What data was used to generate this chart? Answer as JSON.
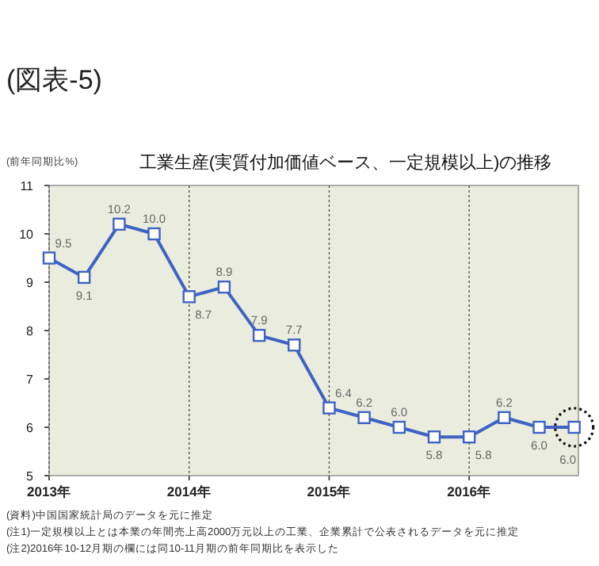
{
  "chart_data": {
    "type": "line",
    "title": "(図表-5)",
    "subtitle": "工業生産(実質付加価値ベース、一定規模以上)の推移",
    "ylabel": "(前年同期比%)",
    "x": [
      2013,
      2013.25,
      2013.5,
      2013.75,
      2014,
      2014.25,
      2014.5,
      2014.75,
      2015,
      2015.25,
      2015.5,
      2015.75,
      2016,
      2016.25,
      2016.5,
      2016.75
    ],
    "series": [
      {
        "color": "#3f63c4",
        "values": [
          9.5,
          9.1,
          10.2,
          10.0,
          8.7,
          8.9,
          7.9,
          7.7,
          6.4,
          6.2,
          6.0,
          5.8,
          5.8,
          6.2,
          6.0,
          6.0
        ]
      }
    ],
    "value_labels": [
      "9.5",
      "9.1",
      "10.2",
      "10.0",
      "8.7",
      "8.9",
      "7.9",
      "7.7",
      "6.4",
      "6.2",
      "6.0",
      "5.8",
      "5.8",
      "6.2",
      "6.0",
      "6.0"
    ],
    "xlim": [
      2013,
      2016.78
    ],
    "xticks": [
      {
        "value": 2013,
        "label": "2013年"
      },
      {
        "value": 2014,
        "label": "2014年"
      },
      {
        "value": 2015,
        "label": "2015年"
      },
      {
        "value": 2016,
        "label": "2016年"
      }
    ],
    "ylim": [
      5,
      11
    ],
    "yticks": [
      5,
      6,
      7,
      8,
      9,
      10,
      11
    ],
    "grid": "x",
    "marker": "square",
    "line_style": "solid",
    "annotations": [
      "(資料)中国国家統計局のデータを元に推定",
      "(注1)一定規模以上とは本業の年間売上高2000万元以上の工業、企業累計で公表されるデータを元に推定",
      "(注2)2016年10-12月期の欄には同10-11月期の前年同期比を表示した"
    ]
  }
}
